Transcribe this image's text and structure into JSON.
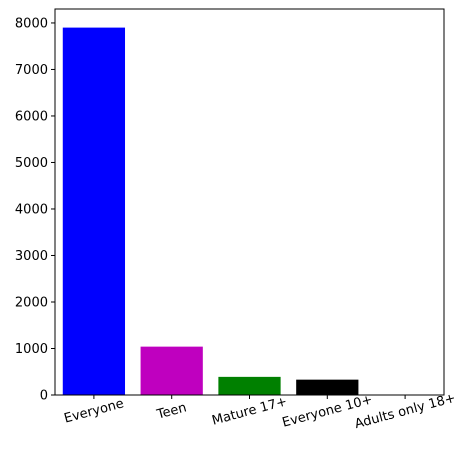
{
  "chart_data": {
    "type": "bar",
    "categories": [
      "Everyone",
      "Teen",
      "Mature 17+",
      "Everyone 10+",
      "Adults only 18+"
    ],
    "values": [
      7900,
      1040,
      390,
      330,
      3
    ],
    "colors": [
      "#0000ff",
      "#bf00bf",
      "#008000",
      "#000000",
      "#0000ff"
    ],
    "ylim": [
      0,
      8300
    ],
    "yticks": [
      0,
      1000,
      2000,
      3000,
      4000,
      5000,
      6000,
      7000,
      8000
    ],
    "xtick_rotation_deg": 15,
    "title": "",
    "xlabel": "",
    "ylabel": "",
    "grid": false,
    "legend": "none"
  }
}
